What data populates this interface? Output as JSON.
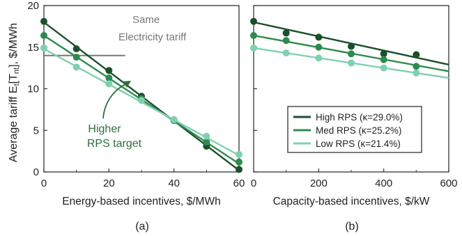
{
  "colors": {
    "high": "#1c4f2c",
    "med": "#2e8b4d",
    "low": "#7fd0b0",
    "annotation_green": "#2d6f3a",
    "tariff_line": "#777777"
  },
  "y_axis_label": "Average tariff E_t[T_nt], $/MWh",
  "chart_data": [
    {
      "type": "line",
      "panel_label": "(a)",
      "xlabel": "Energy-based incentives, $/MWh",
      "ylabel": "Average tariff E_t[T_nt], $/MWh",
      "xlim": [
        0,
        60
      ],
      "ylim": [
        0,
        20
      ],
      "x_ticks": [
        0,
        20,
        40,
        60
      ],
      "y_ticks": [
        0,
        5,
        10,
        15,
        20
      ],
      "grid": false,
      "series": [
        {
          "name": "High RPS (κ=29.0%)",
          "color_key": "high",
          "x": [
            0,
            10,
            20,
            30,
            40,
            50,
            60
          ],
          "y": [
            18.1,
            14.8,
            12.2,
            9.1,
            6.2,
            3.1,
            0.3
          ],
          "fit_line": {
            "x": [
              0,
              60
            ],
            "y": [
              18.0,
              0.2
            ]
          }
        },
        {
          "name": "Med RPS (κ=25.2%)",
          "color_key": "med",
          "x": [
            0,
            10,
            20,
            30,
            40,
            50,
            60
          ],
          "y": [
            16.4,
            13.8,
            11.3,
            8.8,
            6.2,
            3.6,
            1.2
          ],
          "fit_line": {
            "x": [
              0,
              60
            ],
            "y": [
              16.4,
              1.0
            ]
          }
        },
        {
          "name": "Low RPS (κ=21.4%)",
          "color_key": "low",
          "x": [
            0,
            10,
            20,
            30,
            40,
            50,
            60
          ],
          "y": [
            14.9,
            12.6,
            10.6,
            8.6,
            6.3,
            4.3,
            2.1
          ],
          "fit_line": {
            "x": [
              0,
              60
            ],
            "y": [
              14.8,
              2.0
            ]
          }
        }
      ],
      "annotations": {
        "tariff_line": {
          "y": 14.0,
          "x_start": 0,
          "x_end": 25,
          "text_line1": "Same",
          "text_line2": "Electricity tariff"
        },
        "arrow_text_line1": "Higher",
        "arrow_text_line2": "RPS target"
      }
    },
    {
      "type": "line",
      "panel_label": "(b)",
      "xlabel": "Capacity-based incentives, $/kW",
      "xlim": [
        0,
        600
      ],
      "ylim": [
        0,
        20
      ],
      "x_ticks": [
        0,
        200,
        400,
        600
      ],
      "grid": false,
      "legend_position": "lower-right",
      "series": [
        {
          "name": "High RPS (κ=29.0%)",
          "color_key": "high",
          "x": [
            0,
            100,
            200,
            300,
            400,
            500
          ],
          "y": [
            18.1,
            16.7,
            16.2,
            15.1,
            14.2,
            14.1
          ],
          "fit_line": {
            "x": [
              0,
              600
            ],
            "y": [
              18.0,
              12.9
            ]
          }
        },
        {
          "name": "Med RPS (κ=25.2%)",
          "color_key": "med",
          "x": [
            0,
            100,
            200,
            300,
            400,
            500
          ],
          "y": [
            16.4,
            15.8,
            15.0,
            14.2,
            13.5,
            12.7
          ],
          "fit_line": {
            "x": [
              0,
              600
            ],
            "y": [
              16.4,
              12.1
            ]
          }
        },
        {
          "name": "Low RPS (κ=21.4%)",
          "color_key": "low",
          "x": [
            0,
            100,
            200,
            300,
            400,
            500
          ],
          "y": [
            14.9,
            14.3,
            13.7,
            13.1,
            12.5,
            11.9
          ],
          "fit_line": {
            "x": [
              0,
              600
            ],
            "y": [
              14.9,
              11.3
            ]
          }
        }
      ],
      "legend": [
        "High RPS (κ=29.0%)",
        "Med RPS (κ=25.2%)",
        "Low RPS (κ=21.4%)"
      ]
    }
  ]
}
